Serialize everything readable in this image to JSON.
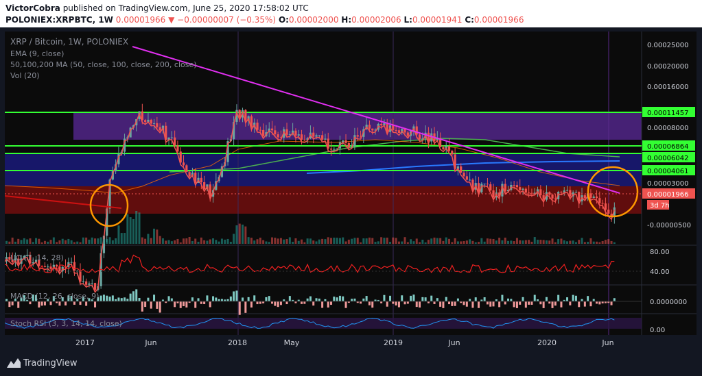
{
  "header": {
    "author": "VictorCobra",
    "published_text": "published on TradingView.com, June 25, 2020 17:58:02 UTC",
    "symbol": "POLONIEX:XRPBTC, 1W",
    "last": "0.00001966",
    "change": "−0.00000007 (−0.35%)",
    "o_label": "O:",
    "o": "0.00002000",
    "h_label": "H:",
    "h": "0.00002006",
    "l_label": "L:",
    "l": "0.00001941",
    "c_label": "C:",
    "c": "0.00001966"
  },
  "legend": {
    "title": "XRP / Bitcoin, 1W, POLONIEX",
    "ema": "EMA (9, close)",
    "ma": "50,100,200 MA (50, close, 100, close, 200, close)",
    "vol": "Vol (20)"
  },
  "chart_data": {
    "type": "candlestick",
    "price_axis_labels": [
      "0.00025000",
      "0.00020000",
      "0.00016000",
      "0.00011457",
      "0.00008000",
      "0.00006864",
      "0.00006042",
      "0.00004061",
      "0.00003000",
      "0.00001966",
      "0.00",
      "-0.00000500"
    ],
    "last_price": "0.00001966",
    "countdown": "3d 7h",
    "x_tick_labels": [
      "2017",
      "Jun",
      "2018",
      "May",
      "2019",
      "Jun",
      "2020",
      "Jun"
    ],
    "horizontal_levels": [
      0.00011457,
      6.864e-05,
      6.042e-05,
      4.061e-05
    ],
    "level_color": "#33ff33",
    "trendline_color": "#e02ff0",
    "candle_up_color": "#6aa5a0",
    "candle_down_color": "#ef5350",
    "close_series": [
      {
        "date": "2016-06",
        "close": 9.2e-06
      },
      {
        "date": "2016-09",
        "close": 8.2e-06
      },
      {
        "date": "2016-12",
        "close": 7.2e-06
      },
      {
        "date": "2017-02",
        "close": 4.8e-06
      },
      {
        "date": "2017-03",
        "close": 3.5e-05
      },
      {
        "date": "2017-05",
        "close": 0.00011
      },
      {
        "date": "2017-07",
        "close": 9e-05
      },
      {
        "date": "2017-09",
        "close": 4.3e-05
      },
      {
        "date": "2017-11",
        "close": 2.6e-05
      },
      {
        "date": "2017-12",
        "close": 5.3e-05
      },
      {
        "date": "2018-01",
        "close": 0.00012
      },
      {
        "date": "2018-03",
        "close": 8.2e-05
      },
      {
        "date": "2018-05",
        "close": 7.8e-05
      },
      {
        "date": "2018-07",
        "close": 7.1e-05
      },
      {
        "date": "2018-09",
        "close": 6.1e-05
      },
      {
        "date": "2018-11",
        "close": 8.4e-05
      },
      {
        "date": "2019-01",
        "close": 8.6e-05
      },
      {
        "date": "2019-03",
        "close": 8e-05
      },
      {
        "date": "2019-05",
        "close": 6.5e-05
      },
      {
        "date": "2019-07",
        "close": 3.2e-05
      },
      {
        "date": "2019-09",
        "close": 2.8e-05
      },
      {
        "date": "2019-11",
        "close": 3.1e-05
      },
      {
        "date": "2020-01",
        "close": 2.6e-05
      },
      {
        "date": "2020-03",
        "close": 2.7e-05
      },
      {
        "date": "2020-05",
        "close": 2.4e-05
      },
      {
        "date": "2020-06",
        "close": 1.966e-05
      }
    ]
  },
  "indicators": {
    "uo": {
      "label": "UO (7, 14, 28)",
      "axis": [
        "80.00",
        "40.00"
      ]
    },
    "macd": {
      "label": "MACD (12, 26, close, 9)",
      "axis": [
        "0.0000000"
      ]
    },
    "stoch": {
      "label": "Stoch RSI (3, 3, 14, 14, close)",
      "axis": [
        "0.00"
      ]
    }
  },
  "footer": {
    "brand": "TradingView"
  }
}
